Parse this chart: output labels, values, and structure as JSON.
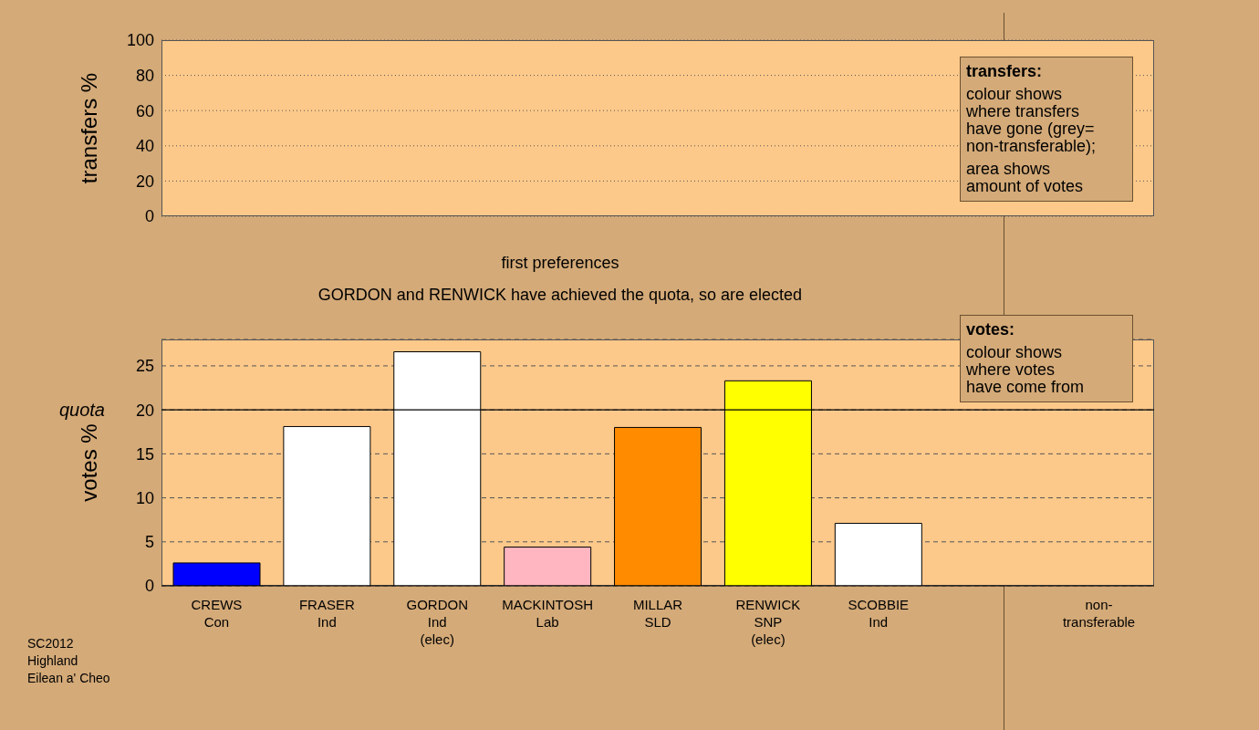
{
  "chart_data": [
    {
      "type": "bar",
      "ylabel": "transfers %",
      "categories": [
        null,
        null,
        null,
        null,
        null,
        null,
        null,
        null,
        null
      ],
      "values": [
        null,
        null,
        null,
        null,
        null,
        null,
        null,
        null,
        null
      ],
      "ylim": [
        0,
        100
      ],
      "yticks": [
        0,
        20,
        40,
        60,
        80,
        100
      ],
      "grid": "y",
      "tick_labels": "y",
      "annotations": [
        "transfers:\ncolour shows\nwhere transfers\nhave gone (grey=\nnon-transferable);\n\narea shows\namount of votes"
      ]
    },
    {
      "type": "bar",
      "title": "first preferences",
      "subtitle": "GORDON and RENWICK have achieved the quota, so are elected",
      "ylabel": "votes %",
      "categories": [
        "CREWS\nCon",
        "FRASER\nInd",
        "GORDON\nInd\n(elec)",
        "MACKINTOSH\nLab",
        "MILLAR\nSLD",
        "RENWICK\nSNP\n(elec)",
        "SCOBBIE\nInd",
        null,
        "non-\ntransferable"
      ],
      "values": [
        2.6,
        18.1,
        26.6,
        4.4,
        18.0,
        23.3,
        7.1,
        null,
        null
      ],
      "colors": [
        "#0000ff",
        "#ffffff",
        "#ffffff",
        "#ffb6c1",
        "#ff8c00",
        "#ffff00",
        "#ffffff",
        null,
        null
      ],
      "ylim": [
        0,
        28
      ],
      "yticks": [
        0,
        5,
        10,
        15,
        20,
        25
      ],
      "grid": "y",
      "ref_lines": [
        {
          "axis": "y",
          "value": 20,
          "label": "quota"
        }
      ],
      "annotations": [
        "votes:\ncolour shows\nwhere votes\nhave come from",
        "SC2012\nHighland\nEilean a' Cheo"
      ]
    }
  ]
}
